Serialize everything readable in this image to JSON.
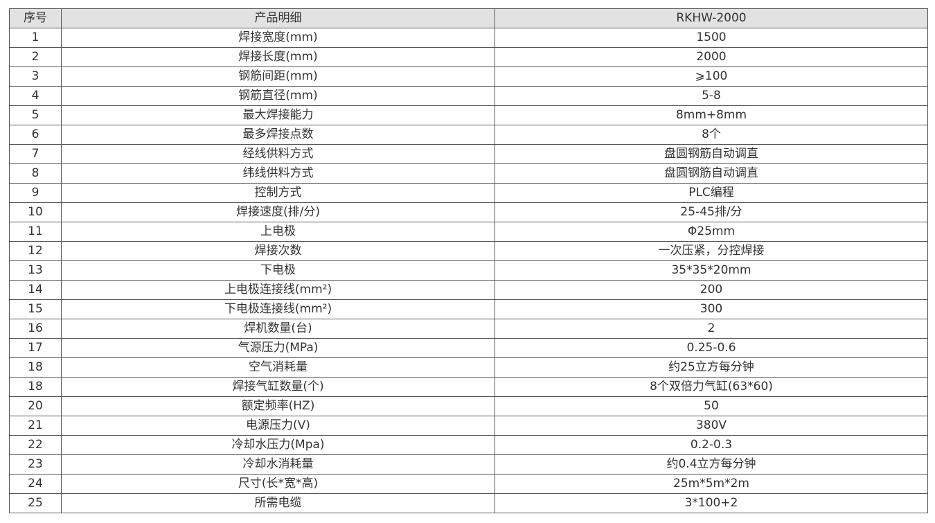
{
  "table": {
    "headers": [
      "序号",
      "产品明细",
      "RKHW-2000"
    ],
    "rows": [
      [
        "1",
        "焊接宽度(mm)",
        "1500"
      ],
      [
        "2",
        "焊接长度(mm)",
        "2000"
      ],
      [
        "3",
        "钢筋间距(mm)",
        "⩾100"
      ],
      [
        "4",
        "钢筋直径(mm)",
        "5-8"
      ],
      [
        "5",
        "最大焊接能力",
        "8mm+8mm"
      ],
      [
        "6",
        "最多焊接点数",
        "8个"
      ],
      [
        "7",
        "经线供料方式",
        "盘圆钢筋自动调直"
      ],
      [
        "8",
        "纬线供料方式",
        "盘圆钢筋自动调直"
      ],
      [
        "9",
        "控制方式",
        "PLC编程"
      ],
      [
        "10",
        "焊接速度(排/分)",
        "25-45排/分"
      ],
      [
        "11",
        "上电极",
        "Φ25mm"
      ],
      [
        "12",
        "焊接次数",
        "一次压紧，分控焊接"
      ],
      [
        "13",
        "下电极",
        "35*35*20mm"
      ],
      [
        "14",
        "上电极连接线(mm²)",
        "200"
      ],
      [
        "15",
        "下电极连接线(mm²)",
        "300"
      ],
      [
        "16",
        "焊机数量(台)",
        "2"
      ],
      [
        "17",
        "气源压力(MPa)",
        "0.25-0.6"
      ],
      [
        "18",
        "空气消耗量",
        "约25立方每分钟"
      ],
      [
        "18",
        "焊接气缸数量(个)",
        "8个双倍力气缸(63*60)"
      ],
      [
        "20",
        "额定频率(HZ)",
        "50"
      ],
      [
        "21",
        "电源压力(V)",
        "380V"
      ],
      [
        "22",
        "冷却水压力(Mpa)",
        "0.2-0.3"
      ],
      [
        "23",
        "冷却水消耗量",
        "约0.4立方每分钟"
      ],
      [
        "24",
        "尺寸(长*宽*高)",
        "25m*5m*2m"
      ],
      [
        "25",
        "所需电缆",
        "3*100+2"
      ]
    ]
  }
}
